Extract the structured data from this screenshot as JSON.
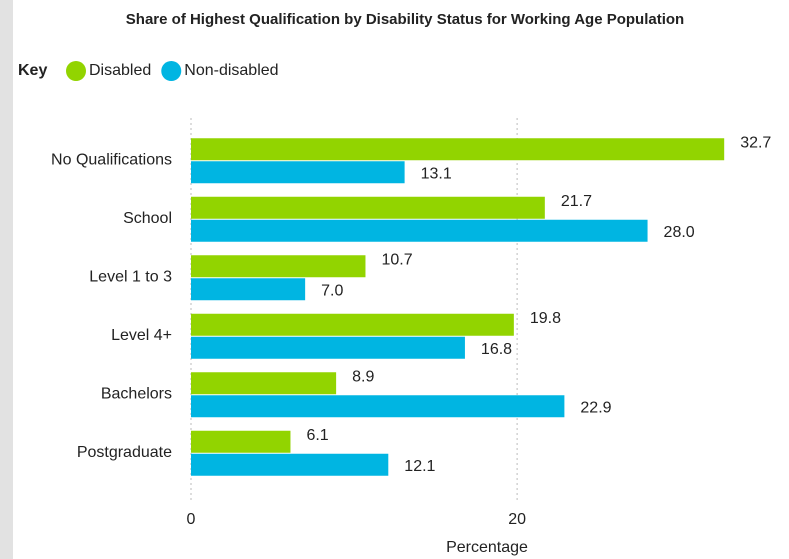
{
  "chart_data": {
    "type": "hbar",
    "title": "Share of Highest Qualification by Disability Status for Working Age Population",
    "legend_title": "Key",
    "categories": [
      "No Qualifications",
      "School",
      "Level 1 to 3",
      "Level 4+",
      "Bachelors",
      "Postgraduate"
    ],
    "series": [
      {
        "name": "Disabled",
        "color": "#92d400",
        "values": [
          32.7,
          21.7,
          10.7,
          19.8,
          8.9,
          6.1
        ],
        "value_labels": [
          "32.7",
          "21.7",
          "10.7",
          "19.8",
          "8.9",
          "6.1"
        ]
      },
      {
        "name": "Non-disabled",
        "color": "#00b5e2",
        "values": [
          13.1,
          28,
          7,
          16.8,
          22.9,
          12.1
        ],
        "value_labels": [
          "13.1",
          "28.0",
          "7.0",
          "16.8",
          "22.9",
          "12.1"
        ]
      }
    ],
    "x_label": "Percentage",
    "xlim": [
      0,
      36
    ],
    "xticks": [
      0,
      20
    ],
    "grid": true
  }
}
